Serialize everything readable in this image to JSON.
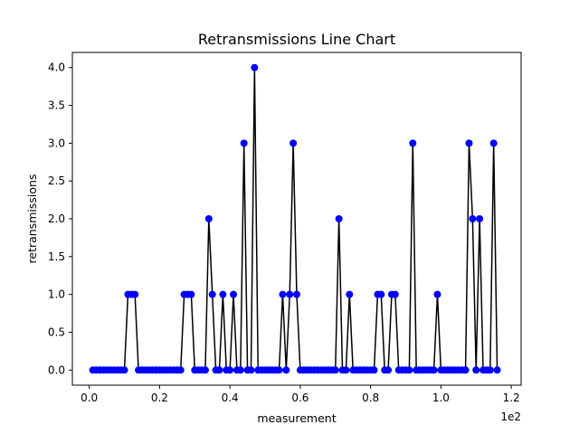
{
  "chart_data": {
    "type": "line",
    "title": "Retransmissions Line Chart",
    "xlabel": "measurement",
    "ylabel": "retransmissions",
    "x_offset_text": "1e2",
    "xlim": [
      -4.8,
      122.8
    ],
    "ylim": [
      -0.2,
      4.2
    ],
    "x_ticks": [
      0,
      20,
      40,
      60,
      80,
      100,
      120
    ],
    "x_tick_labels": [
      "0.0",
      "0.2",
      "0.4",
      "0.6",
      "0.8",
      "1.0",
      "1.2"
    ],
    "y_ticks": [
      0,
      0.5,
      1,
      1.5,
      2,
      2.5,
      3,
      3.5,
      4
    ],
    "y_tick_labels": [
      "0.0",
      "0.5",
      "1.0",
      "1.5",
      "2.0",
      "2.5",
      "3.0",
      "3.5",
      "4.0"
    ],
    "grid": false,
    "line_color": "#000000",
    "marker_color": "#0000ff",
    "series": [
      {
        "x": [
          1,
          2,
          3,
          4,
          5,
          6,
          7,
          8,
          9,
          10,
          11,
          12,
          13,
          14,
          15,
          16,
          17,
          18,
          19,
          20,
          21,
          22,
          23,
          24,
          25,
          26,
          27,
          28,
          29,
          30,
          31,
          32,
          33,
          34,
          35,
          36,
          37,
          38,
          39,
          40,
          41,
          42,
          43,
          44,
          45,
          46,
          47,
          48,
          49,
          50,
          51,
          52,
          53,
          54,
          55,
          56,
          57,
          58,
          59,
          60,
          61,
          62,
          63,
          64,
          65,
          66,
          67,
          68,
          69,
          70,
          71,
          72,
          73,
          74,
          75,
          76,
          77,
          78,
          79,
          80,
          81,
          82,
          83,
          84,
          85,
          86,
          87,
          88,
          89,
          90,
          91,
          92,
          93,
          94,
          95,
          96,
          97,
          98,
          99,
          100,
          101,
          102,
          103,
          104,
          105,
          106,
          107,
          108,
          109,
          110,
          111,
          112,
          113,
          114,
          115,
          116
        ],
        "y": [
          0,
          0,
          0,
          0,
          0,
          0,
          0,
          0,
          0,
          0,
          1,
          1,
          1,
          0,
          0,
          0,
          0,
          0,
          0,
          0,
          0,
          0,
          0,
          0,
          0,
          0,
          1,
          1,
          1,
          0,
          0,
          0,
          0,
          2,
          1,
          0,
          0,
          1,
          0,
          0,
          1,
          0,
          0,
          3,
          0,
          0,
          4,
          0,
          0,
          0,
          0,
          0,
          0,
          0,
          1,
          0,
          1,
          3,
          1,
          0,
          0,
          0,
          0,
          0,
          0,
          0,
          0,
          0,
          0,
          0,
          2,
          0,
          0,
          1,
          0,
          0,
          0,
          0,
          0,
          0,
          0,
          1,
          1,
          0,
          0,
          1,
          1,
          0,
          0,
          0,
          0,
          3,
          0,
          0,
          0,
          0,
          0,
          0,
          1,
          0,
          0,
          0,
          0,
          0,
          0,
          0,
          0,
          3,
          2,
          0,
          2,
          0,
          0,
          0,
          3,
          0
        ]
      }
    ]
  }
}
